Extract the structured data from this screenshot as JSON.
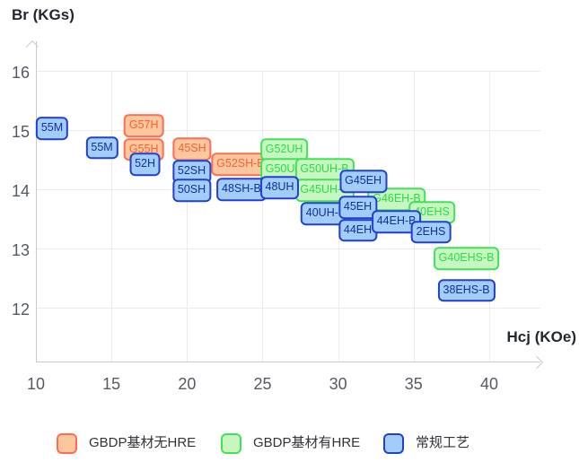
{
  "chart_data": {
    "type": "scatter",
    "title": "",
    "x_title": "Hcj (KOe)",
    "y_title": "Br (KGs)",
    "x_ticks": [
      10,
      15,
      20,
      25,
      30,
      35,
      40
    ],
    "y_ticks": [
      16,
      15,
      14,
      13,
      12
    ],
    "x_range": [
      10,
      43.4
    ],
    "y_range": [
      11.1,
      16.5
    ],
    "grid": true,
    "legend_position": "bottom",
    "series": [
      {
        "name": "GBDP基材无HRE",
        "fill": "#FBC79E",
        "border": "#FC6E52",
        "text_color": "#FA5F30",
        "points": [
          {
            "label": "G57H",
            "hcj": 17.14,
            "br": 15.07
          },
          {
            "label": "G55H",
            "hcj": 17.14,
            "br": 14.67
          },
          {
            "label": "45SH",
            "hcj": 20.34,
            "br": 14.68
          },
          {
            "label": "G52SH-B",
            "hcj": 23.54,
            "br": 14.42
          }
        ]
      },
      {
        "name": "GBDP基材有HRE",
        "fill": "#C8F6C1",
        "border": "#43E159",
        "text_color": "#27DE46",
        "points": [
          {
            "label": "G52UH",
            "hcj": 26.43,
            "br": 14.67
          },
          {
            "label": "G50UH",
            "hcj": 26.43,
            "br": 14.33
          },
          {
            "label": "G50UH-B",
            "hcj": 29.1,
            "br": 14.33
          },
          {
            "label": "G45UH-B",
            "hcj": 29.1,
            "br": 13.98
          },
          {
            "label": "G46EH-B",
            "hcj": 33.88,
            "br": 13.83
          },
          {
            "label": "40EHS",
            "hcj": 36.2,
            "br": 13.61
          },
          {
            "label": "G40EHS-B",
            "hcj": 38.49,
            "br": 12.83
          }
        ]
      },
      {
        "name": "常规工艺",
        "fill": "#A2CDF8",
        "border": "#2240CE",
        "text_color": "#123096",
        "points": [
          {
            "label": "55M",
            "hcj": 11.07,
            "br": 15.03
          },
          {
            "label": "55M",
            "hcj": 14.37,
            "br": 14.7
          },
          {
            "label": "52H",
            "hcj": 17.22,
            "br": 14.42
          },
          {
            "label": "52SH",
            "hcj": 20.31,
            "br": 14.3
          },
          {
            "label": "50SH",
            "hcj": 20.31,
            "br": 13.98
          },
          {
            "label": "48SH-B",
            "hcj": 23.6,
            "br": 14.0
          },
          {
            "label": "48UH",
            "hcj": 26.13,
            "br": 14.03
          },
          {
            "label": "40UH-B",
            "hcj": 29.19,
            "br": 13.59
          },
          {
            "label": "G45EH",
            "hcj": 31.66,
            "br": 14.13
          },
          {
            "label": "45EH",
            "hcj": 31.3,
            "br": 13.69
          },
          {
            "label": "44EH",
            "hcj": 31.3,
            "br": 13.31
          },
          {
            "label": "44EH-B",
            "hcj": 33.86,
            "br": 13.45
          },
          {
            "label": "2EHS",
            "hcj": 36.14,
            "br": 13.28
          },
          {
            "label": "38EHS-B",
            "hcj": 38.49,
            "br": 12.29
          }
        ]
      }
    ]
  }
}
